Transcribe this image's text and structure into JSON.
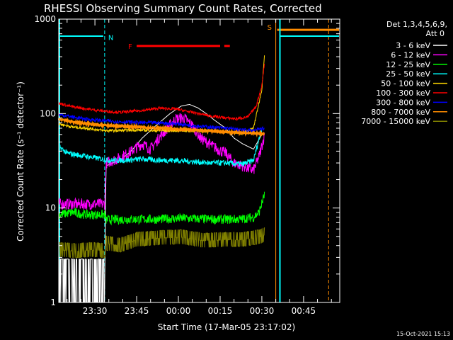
{
  "colors": {
    "background": "#000000",
    "foreground": "#ffffff",
    "ch_3_6": "#ffffff",
    "ch_6_12": "#ff00ff",
    "ch_12_25": "#00ff00",
    "ch_25_50": "#00ffff",
    "ch_50_100": "#ffd700",
    "ch_100_300": "#ff0000",
    "ch_300_800": "#0000ff",
    "ch_800_7000": "#ff8c00",
    "ch_7000_15000": "#808000",
    "night": "#00ffff",
    "saa": "#ff8c00",
    "flare": "#ff0000"
  },
  "chart_data": {
    "type": "line",
    "title": "RHESSI Observing Summary Count Rates, Corrected",
    "xlabel": "Start Time (17-Mar-05 23:17:02)",
    "ylabel": "Corrected Count Rate (s⁻¹ detector⁻¹)",
    "yscale": "log",
    "ylim": [
      1,
      1000
    ],
    "xlim_minutes_after_2317": [
      0,
      101
    ],
    "x_tick_labels": [
      "23:30",
      "23:45",
      "00:00",
      "00:15",
      "00:30",
      "00:45"
    ],
    "x_tick_minutes": [
      13,
      28,
      43,
      58,
      73,
      88
    ],
    "y_tick_labels": [
      "1",
      "10",
      "100",
      "1000"
    ],
    "y_tick_values": [
      1,
      10,
      100,
      1000
    ],
    "stamp": "15-Oct-2021 15:13",
    "legend": {
      "header": "Det 1,3,4,5,6,9,",
      "header2": "Att 0",
      "placement": "top-right outside"
    },
    "annotations": [
      {
        "label": "N",
        "type": "night",
        "minutes": 16.5
      },
      {
        "label": "F",
        "type": "flare",
        "start": 28,
        "end": 64
      },
      {
        "label": "S",
        "type": "saa",
        "minutes": 78
      }
    ],
    "series": [
      {
        "name": "3 - 6 keV",
        "color_key": "ch_3_6",
        "x": [
          0,
          6,
          12,
          16.5,
          17,
          22,
          26,
          30,
          35,
          40,
          44,
          47,
          50,
          53,
          56,
          60,
          63,
          66,
          70,
          73
        ],
        "y": [
          1.4,
          1.4,
          1.4,
          1.4,
          28,
          32,
          40,
          55,
          75,
          100,
          120,
          125,
          115,
          100,
          85,
          70,
          55,
          48,
          42,
          60
        ]
      },
      {
        "name": "6 - 12 keV",
        "color_key": "ch_6_12",
        "x": [
          0,
          5,
          10,
          16.5,
          17,
          21,
          25,
          30,
          33,
          36,
          39,
          42,
          45,
          48,
          51,
          54,
          57,
          60,
          63,
          66,
          70,
          72,
          74
        ],
        "y": [
          11,
          11,
          11,
          11,
          30,
          33,
          38,
          48,
          42,
          55,
          70,
          88,
          90,
          75,
          55,
          48,
          42,
          38,
          30,
          28,
          25,
          35,
          60
        ]
      },
      {
        "name": "12 - 25 keV",
        "color_key": "ch_12_25",
        "x": [
          0,
          5,
          10,
          16.5,
          17,
          25,
          35,
          45,
          55,
          65,
          70,
          72,
          74
        ],
        "y": [
          8.5,
          9,
          8.5,
          8.5,
          7.5,
          7.6,
          7.6,
          7.8,
          7.6,
          7.6,
          8,
          9,
          14
        ]
      },
      {
        "name": "25 - 50 keV",
        "color_key": "ch_25_50",
        "x": [
          0,
          3,
          8,
          13,
          18,
          24,
          30,
          36,
          42,
          48,
          54,
          60,
          66,
          70,
          73
        ],
        "y": [
          45,
          38,
          36,
          34,
          32,
          32,
          33,
          32,
          32,
          31,
          30,
          30,
          29,
          32,
          70
        ]
      },
      {
        "name": "50 - 100 keV",
        "color_key": "ch_50_100",
        "x": [
          0,
          5,
          10,
          16.5,
          20,
          28,
          36,
          44,
          52,
          60,
          66,
          70,
          73,
          74
        ],
        "y": [
          78,
          72,
          70,
          66,
          66,
          67,
          66,
          66,
          66,
          64,
          62,
          70,
          180,
          450
        ]
      },
      {
        "name": "100 - 300 keV",
        "color_key": "ch_100_300",
        "x": [
          0,
          5,
          10,
          16.5,
          22,
          30,
          36,
          42,
          48,
          54,
          60,
          64,
          68,
          71,
          73,
          74
        ],
        "y": [
          128,
          118,
          112,
          106,
          103,
          108,
          114,
          112,
          103,
          95,
          90,
          88,
          92,
          120,
          200,
          350
        ]
      },
      {
        "name": "300 - 800 keV",
        "color_key": "ch_300_800",
        "x": [
          0,
          5,
          10,
          16.5,
          22,
          30,
          36,
          42,
          48,
          54,
          60,
          66,
          70,
          74
        ],
        "y": [
          98,
          92,
          87,
          84,
          82,
          80,
          80,
          78,
          75,
          72,
          70,
          67,
          66,
          70
        ]
      },
      {
        "name": "800 - 7000 keV",
        "color_key": "ch_800_7000",
        "x": [
          0,
          5,
          10,
          16.5,
          24,
          32,
          40,
          48,
          56,
          64,
          70,
          74
        ],
        "y": [
          88,
          82,
          78,
          75,
          73,
          71,
          69,
          67,
          65,
          63,
          62,
          61
        ]
      },
      {
        "name": "7000 - 15000 keV",
        "color_key": "ch_7000_15000",
        "x": [
          0,
          6,
          12,
          16.5,
          17,
          22,
          28,
          36,
          44,
          52,
          60,
          66,
          72,
          74
        ],
        "y": [
          3.6,
          3.5,
          3.6,
          3.5,
          4.2,
          4.0,
          4.6,
          4.8,
          4.9,
          4.5,
          4.6,
          4.6,
          4.9,
          5.2
        ]
      }
    ]
  }
}
